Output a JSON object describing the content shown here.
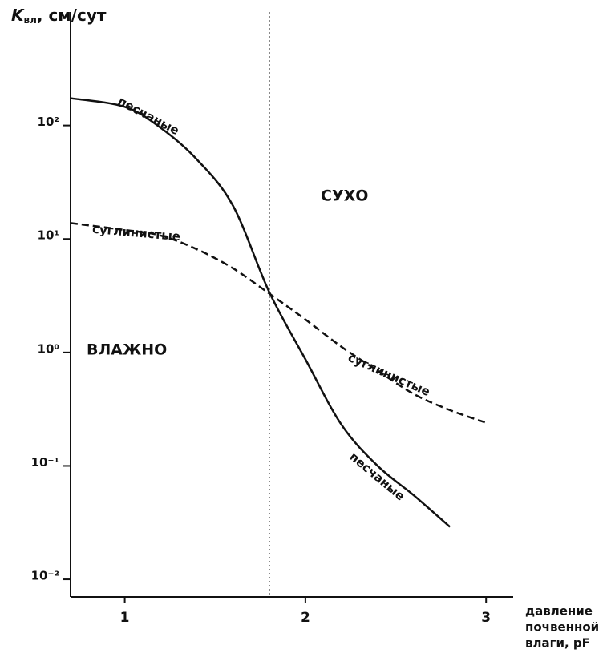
{
  "chart_data": {
    "type": "line",
    "ylabel": {
      "main": "K",
      "sub": "вл",
      "rest": ", см/сут"
    },
    "xlabel": [
      "давление",
      "почвенной",
      "влаги, pF"
    ],
    "annotations": [
      "ВЛАЖНО",
      "СУХО"
    ],
    "x": [
      0.7,
      1.0,
      1.2,
      1.4,
      1.6,
      1.8,
      2.0,
      2.2,
      2.4,
      2.6,
      2.8,
      3.0
    ],
    "series": [
      {
        "name": "песчаные",
        "color": "#111111",
        "style": "solid",
        "values": [
          174,
          146,
          95,
          50,
          19.5,
          3.4,
          0.87,
          0.23,
          0.1,
          0.055,
          0.029,
          null
        ]
      },
      {
        "name": "суглинистые",
        "color": "#111111",
        "style": "dashed",
        "values": [
          13.8,
          12,
          10.7,
          8.1,
          5.5,
          3.3,
          1.95,
          1.12,
          0.69,
          0.43,
          0.31,
          0.24
        ]
      }
    ],
    "vline": 1.8,
    "xlim": [
      0.7,
      3.15
    ],
    "xticks": [
      1,
      2,
      3
    ],
    "ylim": [
      0.007,
      1000
    ],
    "log_y": true,
    "yticks": [
      {
        "value": 100,
        "label": "10²"
      },
      {
        "value": 10,
        "label": "10¹"
      },
      {
        "value": 1,
        "label": "10⁰"
      },
      {
        "value": 0.1,
        "label": "10⁻¹"
      },
      {
        "value": 0.01,
        "label": "10⁻²"
      }
    ],
    "grid": false
  }
}
